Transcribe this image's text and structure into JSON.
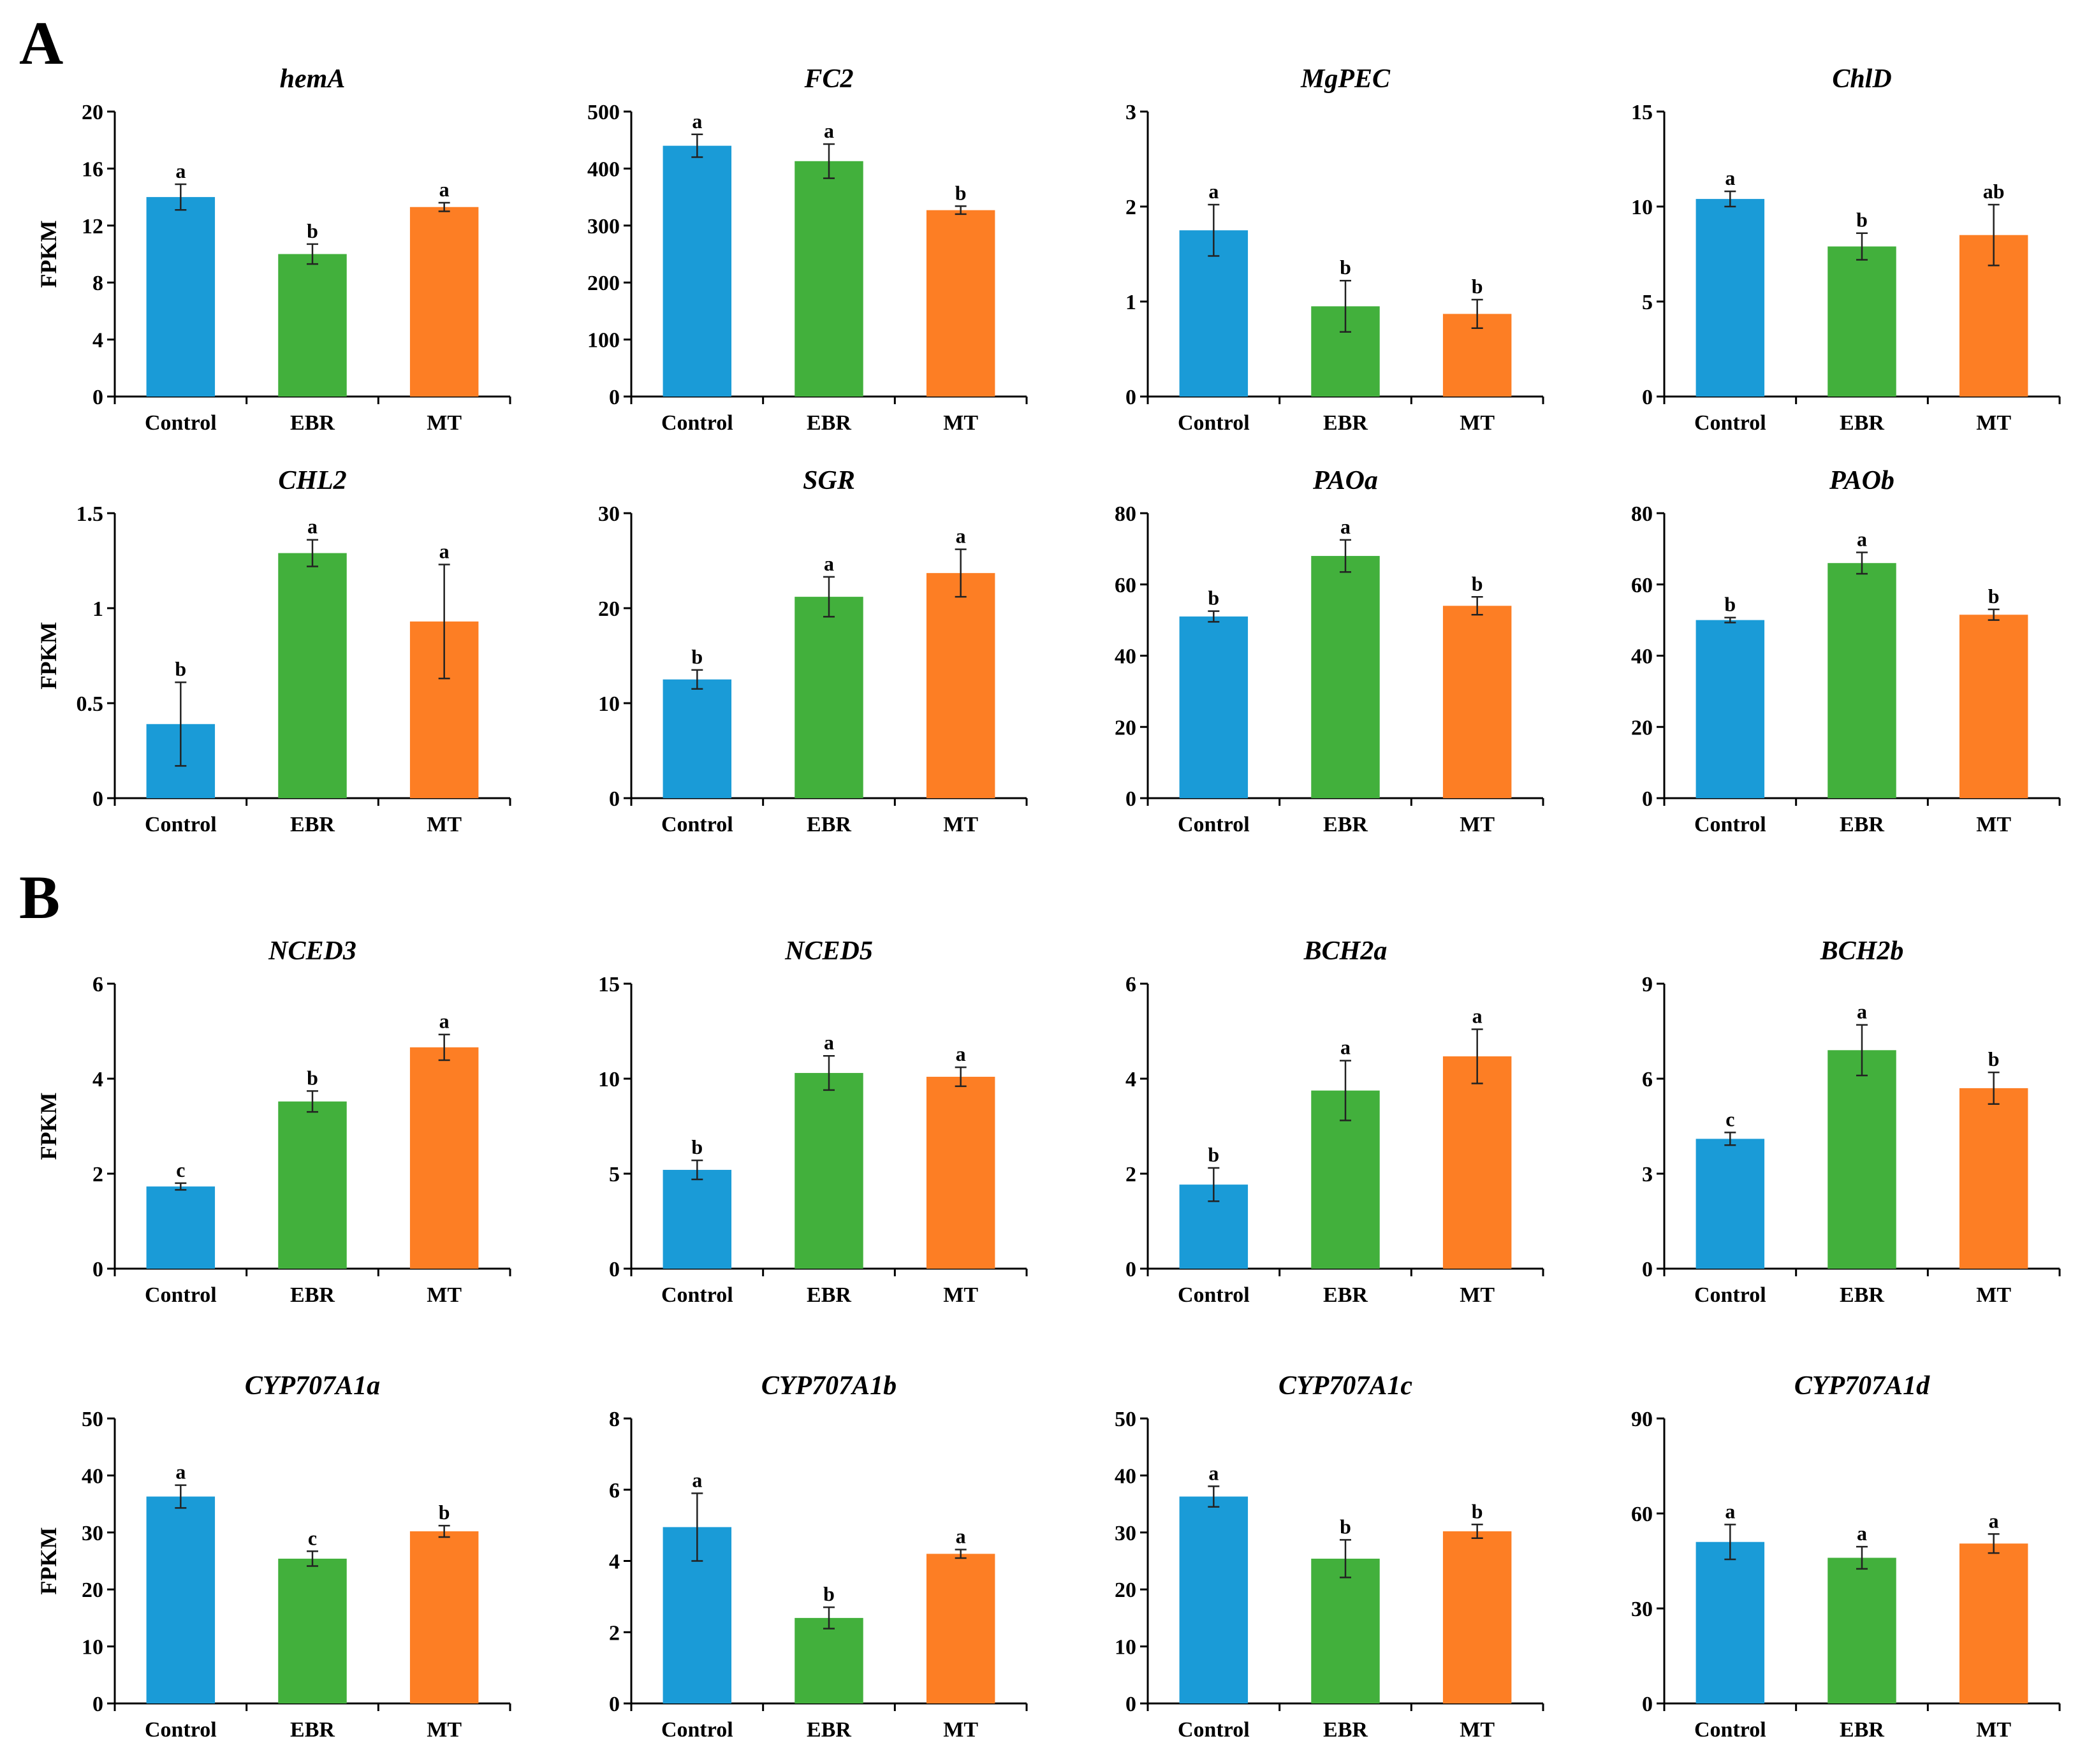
{
  "figure": {
    "panel_labels": [
      "A",
      "B"
    ],
    "colors": {
      "Control": "#1a9bd7",
      "EBR": "#42b03c",
      "MT": "#fd7e24"
    }
  },
  "chart_data": [
    {
      "panel": "A",
      "type": "bar",
      "title": "hemA",
      "ylabel": "FPKM",
      "categories": [
        "Control",
        "EBR",
        "MT"
      ],
      "values": [
        14.0,
        10.0,
        13.3
      ],
      "errors": [
        0.9,
        0.7,
        0.3
      ],
      "letters": [
        "a",
        "b",
        "a"
      ],
      "ylim": [
        0,
        20
      ],
      "yticks": [
        "0",
        "4",
        "8",
        "12",
        "16",
        "20"
      ]
    },
    {
      "panel": "A",
      "type": "bar",
      "title": "FC2",
      "ylabel": "",
      "categories": [
        "Control",
        "EBR",
        "MT"
      ],
      "values": [
        440,
        413,
        327
      ],
      "errors": [
        20,
        30,
        7
      ],
      "letters": [
        "a",
        "a",
        "b"
      ],
      "ylim": [
        0,
        500
      ],
      "yticks": [
        "0",
        "100",
        "200",
        "300",
        "400",
        "500"
      ]
    },
    {
      "panel": "A",
      "type": "bar",
      "title": "MgPEC",
      "ylabel": "",
      "categories": [
        "Control",
        "EBR",
        "MT"
      ],
      "values": [
        1.75,
        0.95,
        0.87
      ],
      "errors": [
        0.27,
        0.27,
        0.15
      ],
      "letters": [
        "a",
        "b",
        "b"
      ],
      "ylim": [
        0,
        3
      ],
      "yticks": [
        "0",
        "1",
        "2",
        "3"
      ]
    },
    {
      "panel": "A",
      "type": "bar",
      "title": "ChlD",
      "ylabel": "",
      "categories": [
        "Control",
        "EBR",
        "MT"
      ],
      "values": [
        10.4,
        7.9,
        8.5
      ],
      "errors": [
        0.4,
        0.7,
        1.6
      ],
      "letters": [
        "a",
        "b",
        "ab"
      ],
      "ylim": [
        0,
        15
      ],
      "yticks": [
        "0",
        "5",
        "10",
        "15"
      ]
    },
    {
      "panel": "A",
      "type": "bar",
      "title": "CHL2",
      "ylabel": "FPKM",
      "categories": [
        "Control",
        "EBR",
        "MT"
      ],
      "values": [
        0.39,
        1.29,
        0.93
      ],
      "errors": [
        0.22,
        0.07,
        0.3
      ],
      "letters": [
        "b",
        "a",
        "a"
      ],
      "ylim": [
        0,
        1.5
      ],
      "yticks": [
        "0",
        "0.5",
        "1",
        "1.5"
      ]
    },
    {
      "panel": "A",
      "type": "bar",
      "title": "SGR",
      "ylabel": "",
      "categories": [
        "Control",
        "EBR",
        "MT"
      ],
      "values": [
        12.5,
        21.2,
        23.7
      ],
      "errors": [
        1.0,
        2.1,
        2.5
      ],
      "letters": [
        "b",
        "a",
        "a"
      ],
      "ylim": [
        0,
        30
      ],
      "yticks": [
        "0",
        "10",
        "20",
        "30"
      ]
    },
    {
      "panel": "A",
      "type": "bar",
      "title": "PAOa",
      "ylabel": "",
      "categories": [
        "Control",
        "EBR",
        "MT"
      ],
      "values": [
        51,
        68,
        54
      ],
      "errors": [
        1.5,
        4.5,
        2.5
      ],
      "letters": [
        "b",
        "a",
        "b"
      ],
      "ylim": [
        0,
        80
      ],
      "yticks": [
        "0",
        "20",
        "40",
        "60",
        "80"
      ]
    },
    {
      "panel": "A",
      "type": "bar",
      "title": "PAOb",
      "ylabel": "",
      "categories": [
        "Control",
        "EBR",
        "MT"
      ],
      "values": [
        50,
        66,
        51.5
      ],
      "errors": [
        0.7,
        3.0,
        1.5
      ],
      "letters": [
        "b",
        "a",
        "b"
      ],
      "ylim": [
        0,
        80
      ],
      "yticks": [
        "0",
        "20",
        "40",
        "60",
        "80"
      ]
    },
    {
      "panel": "B",
      "type": "bar",
      "title": "NCED3",
      "ylabel": "FPKM",
      "categories": [
        "Control",
        "EBR",
        "MT"
      ],
      "values": [
        1.73,
        3.52,
        4.66
      ],
      "errors": [
        0.07,
        0.22,
        0.27
      ],
      "letters": [
        "c",
        "b",
        "a"
      ],
      "ylim": [
        0,
        6
      ],
      "yticks": [
        "0",
        "2",
        "4",
        "6"
      ]
    },
    {
      "panel": "B",
      "type": "bar",
      "title": "NCED5",
      "ylabel": "",
      "categories": [
        "Control",
        "EBR",
        "MT"
      ],
      "values": [
        5.2,
        10.3,
        10.1
      ],
      "errors": [
        0.5,
        0.9,
        0.5
      ],
      "letters": [
        "b",
        "a",
        "a"
      ],
      "ylim": [
        0,
        15
      ],
      "yticks": [
        "0",
        "5",
        "10",
        "15"
      ]
    },
    {
      "panel": "B",
      "type": "bar",
      "title": "BCH2a",
      "ylabel": "",
      "categories": [
        "Control",
        "EBR",
        "MT"
      ],
      "values": [
        1.77,
        3.75,
        4.47
      ],
      "errors": [
        0.35,
        0.63,
        0.57
      ],
      "letters": [
        "b",
        "a",
        "a"
      ],
      "ylim": [
        0,
        6
      ],
      "yticks": [
        "0",
        "2",
        "4",
        "6"
      ]
    },
    {
      "panel": "B",
      "type": "bar",
      "title": "BCH2b",
      "ylabel": "",
      "categories": [
        "Control",
        "EBR",
        "MT"
      ],
      "values": [
        4.1,
        6.9,
        5.7
      ],
      "errors": [
        0.2,
        0.8,
        0.5
      ],
      "letters": [
        "c",
        "a",
        "b"
      ],
      "ylim": [
        0,
        9
      ],
      "yticks": [
        "0",
        "3",
        "6",
        "9"
      ]
    },
    {
      "panel": "B",
      "type": "bar",
      "title": "CYP707A1a",
      "ylabel": "FPKM",
      "categories": [
        "Control",
        "EBR",
        "MT"
      ],
      "values": [
        36.3,
        25.4,
        30.2
      ],
      "errors": [
        2.0,
        1.3,
        1.0
      ],
      "letters": [
        "a",
        "c",
        "b"
      ],
      "ylim": [
        0,
        50
      ],
      "yticks": [
        "0",
        "10",
        "20",
        "30",
        "40",
        "50"
      ]
    },
    {
      "panel": "B",
      "type": "bar",
      "title": "CYP707A1b",
      "ylabel": "",
      "categories": [
        "Control",
        "EBR",
        "MT"
      ],
      "values": [
        4.95,
        2.4,
        4.2
      ],
      "errors": [
        0.95,
        0.3,
        0.12
      ],
      "letters": [
        "a",
        "b",
        "a"
      ],
      "ylim": [
        0,
        8
      ],
      "yticks": [
        "0",
        "2",
        "4",
        "6",
        "8"
      ]
    },
    {
      "panel": "B",
      "type": "bar",
      "title": "CYP707A1c",
      "ylabel": "",
      "categories": [
        "Control",
        "EBR",
        "MT"
      ],
      "values": [
        36.3,
        25.4,
        30.2
      ],
      "errors": [
        1.8,
        3.3,
        1.2
      ],
      "letters": [
        "a",
        "b",
        "b"
      ],
      "ylim": [
        0,
        50
      ],
      "yticks": [
        "0",
        "10",
        "20",
        "30",
        "40",
        "50"
      ]
    },
    {
      "panel": "B",
      "type": "bar",
      "title": "CYP707A1d",
      "ylabel": "",
      "categories": [
        "Control",
        "EBR",
        "MT"
      ],
      "values": [
        51,
        46,
        50.5
      ],
      "errors": [
        5.5,
        3.5,
        3.0
      ],
      "letters": [
        "a",
        "a",
        "a"
      ],
      "ylim": [
        0,
        90
      ],
      "yticks": [
        "0",
        "30",
        "60",
        "90"
      ]
    }
  ]
}
